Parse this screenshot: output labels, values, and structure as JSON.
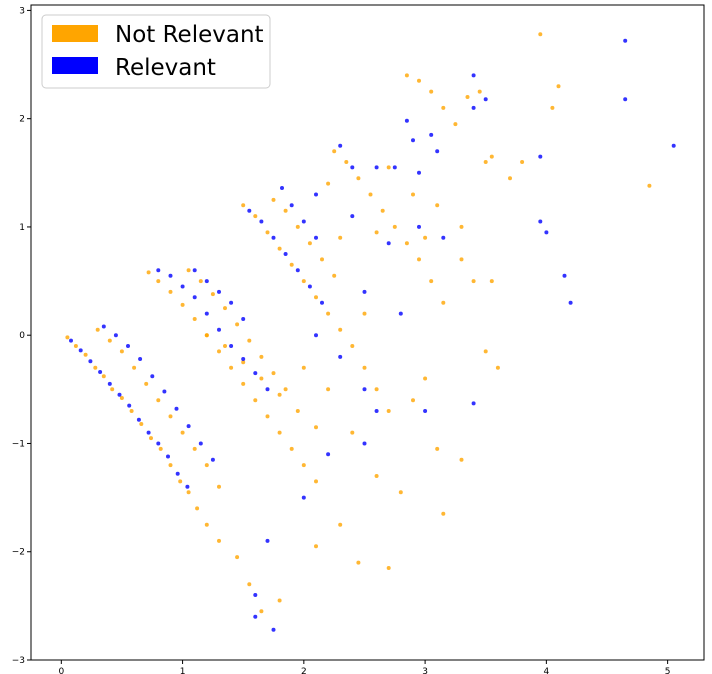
{
  "chart_data": {
    "type": "scatter",
    "title": "",
    "xlabel": "",
    "ylabel": "",
    "xlim": [
      -0.25,
      5.3
    ],
    "ylim": [
      -3.0,
      3.05
    ],
    "xticks": [
      "0",
      "1",
      "2",
      "3",
      "4",
      "5"
    ],
    "yticks": [
      "3",
      "2",
      "1",
      "0",
      "−1",
      "−2",
      "−3"
    ],
    "grid": false,
    "legend_position": "top-left",
    "series": [
      {
        "name": "Not Relevant",
        "color": "#FFA500",
        "points": [
          [
            0.05,
            -0.02
          ],
          [
            0.12,
            -0.1
          ],
          [
            0.2,
            -0.18
          ],
          [
            0.28,
            -0.3
          ],
          [
            0.35,
            -0.38
          ],
          [
            0.42,
            -0.5
          ],
          [
            0.5,
            -0.58
          ],
          [
            0.58,
            -0.7
          ],
          [
            0.66,
            -0.82
          ],
          [
            0.74,
            -0.95
          ],
          [
            0.82,
            -1.05
          ],
          [
            0.9,
            -1.2
          ],
          [
            0.98,
            -1.35
          ],
          [
            1.05,
            -1.45
          ],
          [
            1.12,
            -1.6
          ],
          [
            1.2,
            -1.75
          ],
          [
            1.3,
            -1.9
          ],
          [
            0.3,
            0.05
          ],
          [
            0.4,
            -0.05
          ],
          [
            0.5,
            -0.15
          ],
          [
            0.6,
            -0.3
          ],
          [
            0.7,
            -0.45
          ],
          [
            0.8,
            -0.6
          ],
          [
            0.9,
            -0.75
          ],
          [
            1.0,
            -0.9
          ],
          [
            1.1,
            -1.05
          ],
          [
            1.2,
            -1.2
          ],
          [
            1.3,
            -1.4
          ],
          [
            0.72,
            0.58
          ],
          [
            0.8,
            0.5
          ],
          [
            0.9,
            0.4
          ],
          [
            1.0,
            0.28
          ],
          [
            1.1,
            0.15
          ],
          [
            1.2,
            0.0
          ],
          [
            1.3,
            -0.15
          ],
          [
            1.4,
            -0.3
          ],
          [
            1.5,
            -0.45
          ],
          [
            1.6,
            -0.6
          ],
          [
            1.7,
            -0.75
          ],
          [
            1.8,
            -0.9
          ],
          [
            1.9,
            -1.05
          ],
          [
            2.0,
            -1.2
          ],
          [
            2.1,
            -1.35
          ],
          [
            1.05,
            0.6
          ],
          [
            1.15,
            0.5
          ],
          [
            1.25,
            0.38
          ],
          [
            1.35,
            0.25
          ],
          [
            1.45,
            0.1
          ],
          [
            1.55,
            -0.05
          ],
          [
            1.65,
            -0.2
          ],
          [
            1.75,
            -0.35
          ],
          [
            1.85,
            -0.5
          ],
          [
            1.2,
            0.0
          ],
          [
            1.35,
            -0.1
          ],
          [
            1.5,
            -0.25
          ],
          [
            1.65,
            -0.4
          ],
          [
            1.8,
            -0.55
          ],
          [
            1.95,
            -0.7
          ],
          [
            2.1,
            -0.85
          ],
          [
            1.5,
            1.2
          ],
          [
            1.6,
            1.1
          ],
          [
            1.7,
            0.95
          ],
          [
            1.8,
            0.8
          ],
          [
            1.9,
            0.65
          ],
          [
            2.0,
            0.5
          ],
          [
            2.1,
            0.35
          ],
          [
            2.2,
            0.2
          ],
          [
            2.3,
            0.05
          ],
          [
            2.4,
            -0.1
          ],
          [
            2.5,
            -0.3
          ],
          [
            2.6,
            -0.5
          ],
          [
            2.7,
            -0.7
          ],
          [
            1.75,
            1.25
          ],
          [
            1.85,
            1.15
          ],
          [
            1.95,
            1.0
          ],
          [
            2.05,
            0.85
          ],
          [
            2.15,
            0.7
          ],
          [
            2.25,
            0.55
          ],
          [
            2.25,
            1.7
          ],
          [
            2.35,
            1.6
          ],
          [
            2.45,
            1.45
          ],
          [
            2.55,
            1.3
          ],
          [
            2.65,
            1.15
          ],
          [
            2.75,
            1.0
          ],
          [
            2.85,
            0.85
          ],
          [
            2.95,
            0.7
          ],
          [
            3.05,
            0.5
          ],
          [
            3.15,
            0.3
          ],
          [
            2.85,
            2.4
          ],
          [
            2.95,
            2.35
          ],
          [
            3.05,
            2.25
          ],
          [
            3.15,
            2.1
          ],
          [
            3.25,
            1.95
          ],
          [
            3.35,
            2.2
          ],
          [
            3.45,
            2.25
          ],
          [
            3.5,
            1.6
          ],
          [
            3.55,
            1.65
          ],
          [
            3.7,
            1.45
          ],
          [
            3.8,
            1.6
          ],
          [
            3.95,
            2.78
          ],
          [
            4.1,
            2.3
          ],
          [
            4.05,
            2.1
          ],
          [
            4.85,
            1.38
          ],
          [
            1.45,
            -2.05
          ],
          [
            1.55,
            -2.3
          ],
          [
            1.8,
            -2.45
          ],
          [
            1.65,
            -2.55
          ],
          [
            2.1,
            -1.95
          ],
          [
            2.3,
            -1.75
          ],
          [
            2.45,
            -2.1
          ],
          [
            2.7,
            -2.15
          ],
          [
            3.15,
            -1.65
          ],
          [
            3.3,
            -1.15
          ],
          [
            3.1,
            -1.05
          ],
          [
            3.0,
            -0.4
          ],
          [
            3.5,
            -0.15
          ],
          [
            3.6,
            -0.3
          ],
          [
            3.4,
            0.5
          ],
          [
            3.3,
            0.7
          ],
          [
            3.55,
            0.5
          ],
          [
            2.0,
            -0.3
          ],
          [
            2.2,
            -0.5
          ],
          [
            2.4,
            -0.9
          ],
          [
            2.6,
            -1.3
          ],
          [
            2.8,
            -1.45
          ],
          [
            2.9,
            -0.6
          ],
          [
            2.5,
            0.2
          ],
          [
            2.3,
            0.9
          ],
          [
            2.6,
            0.95
          ],
          [
            2.7,
            1.55
          ],
          [
            2.9,
            1.3
          ],
          [
            3.1,
            1.2
          ],
          [
            3.3,
            1.0
          ],
          [
            3.0,
            0.9
          ],
          [
            2.2,
            1.4
          ]
        ]
      },
      {
        "name": "Relevant",
        "color": "#0000FF",
        "points": [
          [
            0.08,
            -0.05
          ],
          [
            0.16,
            -0.14
          ],
          [
            0.24,
            -0.24
          ],
          [
            0.32,
            -0.34
          ],
          [
            0.4,
            -0.45
          ],
          [
            0.48,
            -0.55
          ],
          [
            0.56,
            -0.65
          ],
          [
            0.64,
            -0.78
          ],
          [
            0.72,
            -0.9
          ],
          [
            0.8,
            -1.0
          ],
          [
            0.88,
            -1.12
          ],
          [
            0.96,
            -1.28
          ],
          [
            1.04,
            -1.4
          ],
          [
            0.35,
            0.08
          ],
          [
            0.45,
            0.0
          ],
          [
            0.55,
            -0.1
          ],
          [
            0.65,
            -0.22
          ],
          [
            0.75,
            -0.38
          ],
          [
            0.85,
            -0.52
          ],
          [
            0.95,
            -0.68
          ],
          [
            1.05,
            -0.84
          ],
          [
            1.15,
            -1.0
          ],
          [
            1.25,
            -1.15
          ],
          [
            0.8,
            0.6
          ],
          [
            0.9,
            0.55
          ],
          [
            1.0,
            0.45
          ],
          [
            1.1,
            0.35
          ],
          [
            1.2,
            0.2
          ],
          [
            1.3,
            0.05
          ],
          [
            1.4,
            -0.1
          ],
          [
            1.5,
            -0.22
          ],
          [
            1.6,
            -0.35
          ],
          [
            1.7,
            -0.5
          ],
          [
            1.1,
            0.6
          ],
          [
            1.2,
            0.5
          ],
          [
            1.3,
            0.4
          ],
          [
            1.4,
            0.3
          ],
          [
            1.5,
            0.15
          ],
          [
            1.55,
            1.15
          ],
          [
            1.65,
            1.05
          ],
          [
            1.75,
            0.9
          ],
          [
            1.85,
            0.75
          ],
          [
            1.95,
            0.6
          ],
          [
            2.05,
            0.45
          ],
          [
            2.15,
            0.3
          ],
          [
            1.82,
            1.36
          ],
          [
            1.9,
            1.2
          ],
          [
            2.0,
            1.05
          ],
          [
            2.1,
            0.9
          ],
          [
            2.3,
            1.75
          ],
          [
            2.4,
            1.55
          ],
          [
            2.6,
            1.55
          ],
          [
            2.75,
            1.55
          ],
          [
            2.9,
            1.8
          ],
          [
            2.95,
            1.5
          ],
          [
            3.05,
            1.85
          ],
          [
            2.85,
            1.98
          ],
          [
            3.1,
            1.7
          ],
          [
            3.4,
            2.4
          ],
          [
            3.4,
            2.1
          ],
          [
            3.5,
            2.18
          ],
          [
            3.95,
            1.65
          ],
          [
            4.0,
            0.95
          ],
          [
            3.95,
            1.05
          ],
          [
            4.15,
            0.55
          ],
          [
            4.2,
            0.3
          ],
          [
            4.65,
            2.72
          ],
          [
            4.65,
            2.18
          ],
          [
            5.05,
            1.75
          ],
          [
            1.6,
            -2.4
          ],
          [
            1.6,
            -2.6
          ],
          [
            1.75,
            -2.72
          ],
          [
            1.7,
            -1.9
          ],
          [
            2.0,
            -1.5
          ],
          [
            2.2,
            -1.1
          ],
          [
            2.5,
            -1.0
          ],
          [
            2.6,
            -0.7
          ],
          [
            3.0,
            -0.7
          ],
          [
            3.4,
            -0.63
          ],
          [
            2.1,
            0.0
          ],
          [
            2.3,
            -0.2
          ],
          [
            2.5,
            0.4
          ],
          [
            2.7,
            0.85
          ],
          [
            2.95,
            1.0
          ],
          [
            3.15,
            0.9
          ],
          [
            2.8,
            0.2
          ],
          [
            2.5,
            -0.5
          ],
          [
            2.1,
            1.3
          ],
          [
            2.4,
            1.1
          ]
        ]
      }
    ]
  }
}
